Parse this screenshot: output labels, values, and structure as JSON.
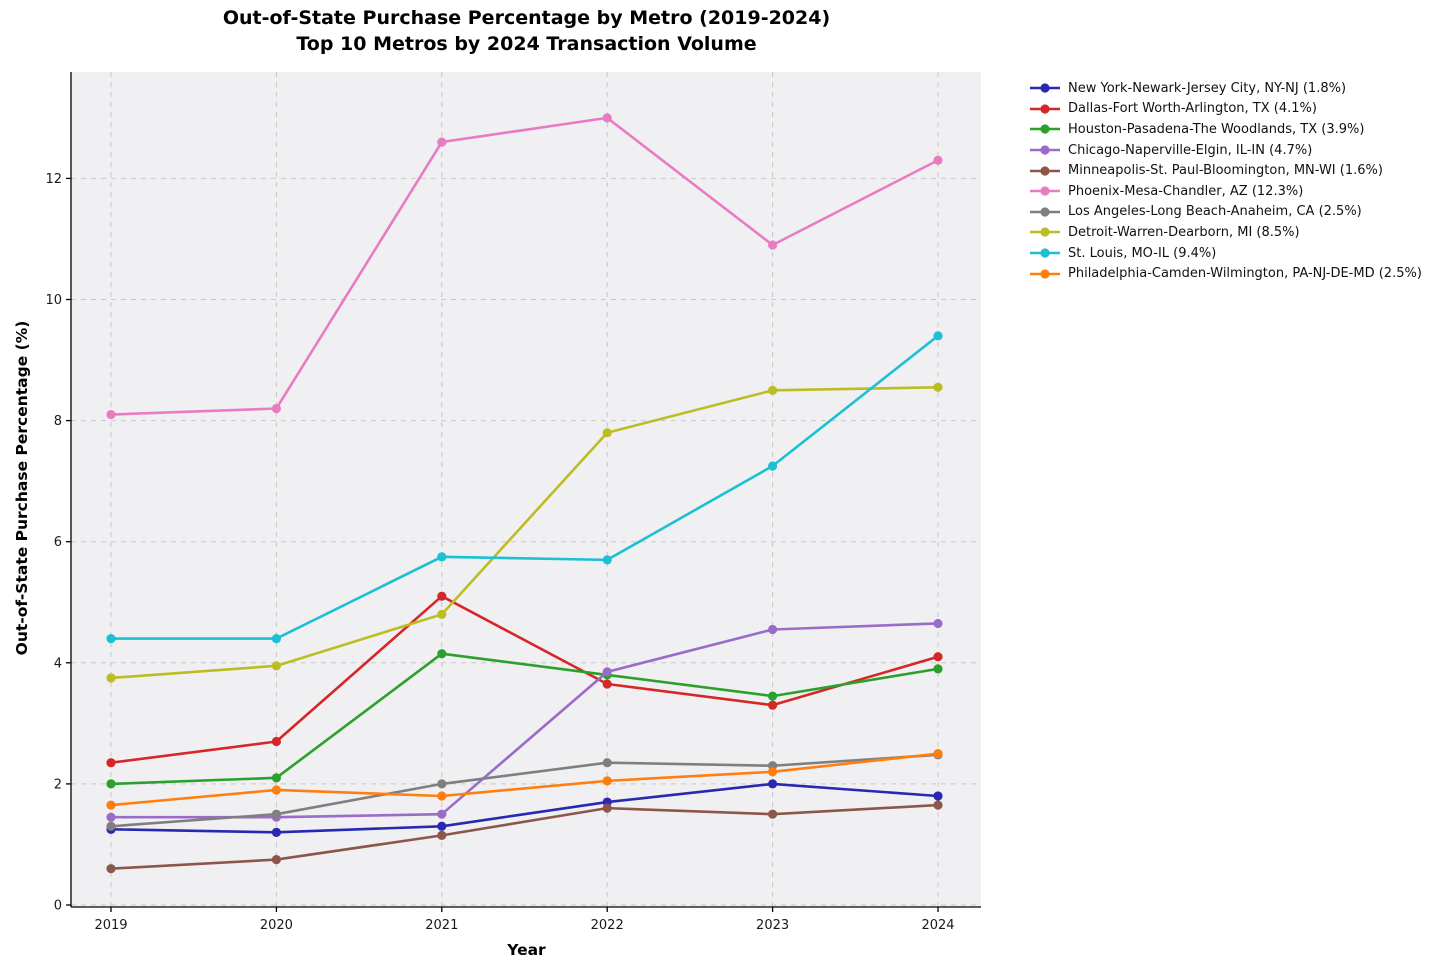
{
  "title": {
    "line1": "Out-of-State Purchase Percentage by Metro (2019-2024)",
    "line2": "Top 10 Metros by 2024 Transaction Volume"
  },
  "axes": {
    "x_label": "Year",
    "y_label": "Out-of-State Purchase Percentage (%)"
  },
  "style": {
    "plot_background": "#f0f0f2",
    "gridline_color": "#c9c9c9",
    "spine_color": "#000000",
    "tick_label_color": "#1a1a1a"
  },
  "chart_data": {
    "type": "line",
    "title": "Out-of-State Purchase Percentage by Metro (2019-2024) — Top 10 Metros by 2024 Transaction Volume",
    "xlabel": "Year",
    "ylabel": "Out-of-State Purchase Percentage (%)",
    "categories": [
      "2019",
      "2020",
      "2021",
      "2022",
      "2023",
      "2024"
    ],
    "yticks": [
      0,
      2,
      4,
      6,
      8,
      10,
      12
    ],
    "ylim": [
      0,
      13.8
    ],
    "grid": true,
    "grid_style": "dashed",
    "legend_position": "right-outside",
    "marker": "circle",
    "series": [
      {
        "name": "New York-Newark-Jersey City, NY-NJ (1.8%)",
        "color": "#2828b0",
        "values": [
          1.25,
          1.2,
          1.3,
          1.7,
          2.0,
          1.8
        ]
      },
      {
        "name": "Dallas-Fort Worth-Arlington, TX (4.1%)",
        "color": "#d62728",
        "values": [
          2.35,
          2.7,
          5.1,
          3.65,
          3.3,
          4.1
        ]
      },
      {
        "name": "Houston-Pasadena-The Woodlands, TX (3.9%)",
        "color": "#2ca02c",
        "values": [
          2.0,
          2.1,
          4.15,
          3.8,
          3.45,
          3.9
        ]
      },
      {
        "name": "Chicago-Naperville-Elgin, IL-IN (4.7%)",
        "color": "#9b6bc9",
        "values": [
          1.45,
          1.45,
          1.5,
          3.85,
          4.55,
          4.65
        ]
      },
      {
        "name": "Minneapolis-St. Paul-Bloomington, MN-WI (1.6%)",
        "color": "#8c564b",
        "values": [
          0.6,
          0.75,
          1.15,
          1.6,
          1.5,
          1.65
        ]
      },
      {
        "name": "Phoenix-Mesa-Chandler, AZ (12.3%)",
        "color": "#e87cc3",
        "values": [
          8.1,
          8.2,
          12.6,
          13.0,
          10.9,
          12.3
        ]
      },
      {
        "name": "Los Angeles-Long Beach-Anaheim, CA (2.5%)",
        "color": "#7f7f7f",
        "values": [
          1.3,
          1.5,
          2.0,
          2.35,
          2.3,
          2.48
        ]
      },
      {
        "name": "Detroit-Warren-Dearborn, MI (8.5%)",
        "color": "#bcbd22",
        "values": [
          3.75,
          3.95,
          4.8,
          7.8,
          8.5,
          8.55
        ]
      },
      {
        "name": "St. Louis, MO-IL (9.4%)",
        "color": "#1cc0d3",
        "values": [
          4.4,
          4.4,
          5.75,
          5.7,
          7.25,
          9.4
        ]
      },
      {
        "name": "Philadelphia-Camden-Wilmington, PA-NJ-DE-MD (2.5%)",
        "color": "#ff7f0e",
        "values": [
          1.65,
          1.9,
          1.8,
          2.05,
          2.2,
          2.5
        ]
      }
    ]
  }
}
